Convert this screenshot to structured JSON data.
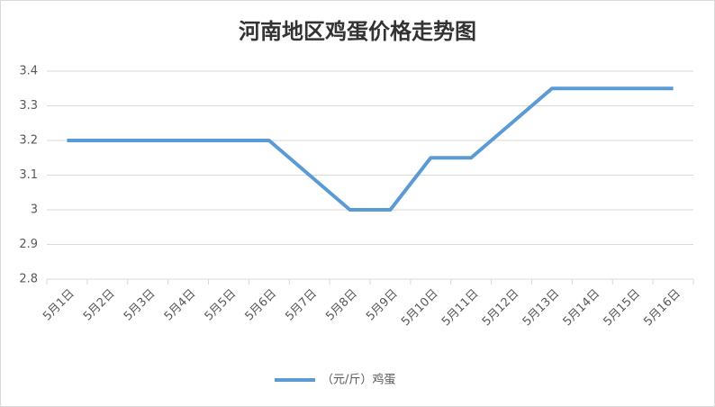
{
  "chart_data": {
    "type": "line",
    "title": "河南地区鸡蛋价格走势图",
    "categories": [
      "5月1日",
      "5月2日",
      "5月3日",
      "5月4日",
      "5月5日",
      "5月6日",
      "5月7日",
      "5月8日",
      "5月9日",
      "5月10日",
      "5月11日",
      "5月12日",
      "5月13日",
      "5月14日",
      "5月15日",
      "5月16日"
    ],
    "series": [
      {
        "name": "（元/斤）鸡蛋",
        "color": "#5b9bd5",
        "values": [
          3.2,
          3.2,
          3.2,
          3.2,
          3.2,
          3.2,
          3.1,
          3.0,
          3.0,
          3.15,
          3.15,
          3.25,
          3.35,
          3.35,
          3.35,
          3.35
        ]
      }
    ],
    "ylim": [
      2.8,
      3.4
    ],
    "yticks": [
      2.8,
      2.9,
      3,
      3.1,
      3.2,
      3.3,
      3.4
    ],
    "grid": true,
    "legend": "bottom"
  }
}
